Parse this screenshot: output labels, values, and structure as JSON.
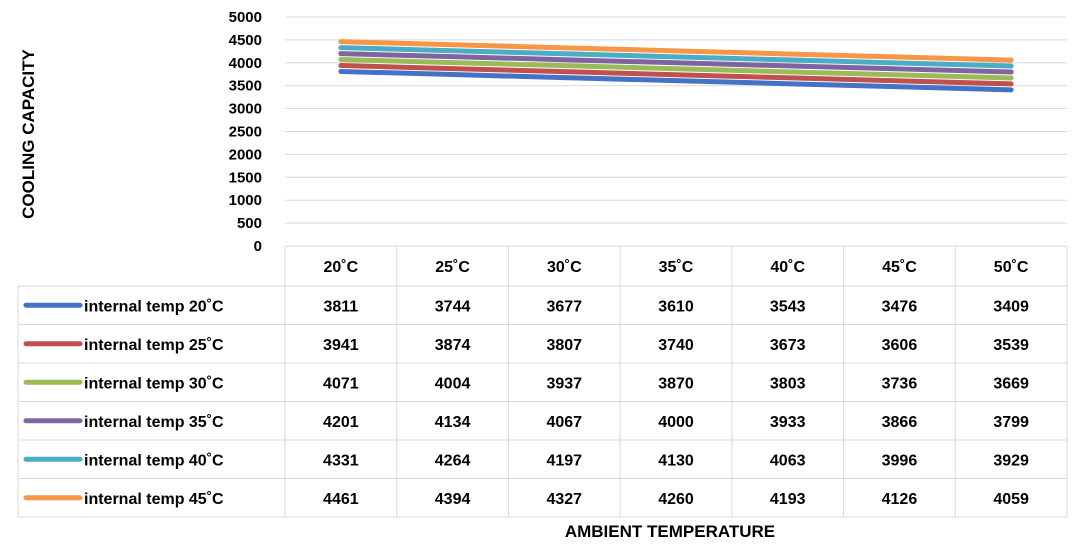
{
  "chart_data": {
    "type": "line",
    "title": "",
    "ylabel": "COOLING  CAPACITY",
    "xlabel": "AMBIENT TEMPERATURE",
    "ylim": [
      0,
      5000
    ],
    "yticks": [
      "0",
      "500",
      "1000",
      "1500",
      "2000",
      "2500",
      "3000",
      "3500",
      "4000",
      "4500",
      "5000"
    ],
    "categories": [
      "20˚C",
      "25˚C",
      "30˚C",
      "35˚C",
      "40˚C",
      "45˚C",
      "50˚C"
    ],
    "grid": true,
    "legend": "data-table",
    "series": [
      {
        "name": "internal temp 20˚C",
        "color": "#4472c4",
        "values": [
          3811,
          3744,
          3677,
          3610,
          3543,
          3476,
          3409
        ]
      },
      {
        "name": "internal temp 25˚C",
        "color": "#c0504d",
        "values": [
          3941,
          3874,
          3807,
          3740,
          3673,
          3606,
          3539
        ]
      },
      {
        "name": "internal temp 30˚C",
        "color": "#9bbb59",
        "values": [
          4071,
          4004,
          3937,
          3870,
          3803,
          3736,
          3669
        ]
      },
      {
        "name": "internal temp 35˚C",
        "color": "#8064a2",
        "values": [
          4201,
          4134,
          4067,
          4000,
          3933,
          3866,
          3799
        ]
      },
      {
        "name": "internal temp 40˚C",
        "color": "#4bacc6",
        "values": [
          4331,
          4264,
          4197,
          4130,
          4063,
          3996,
          3929
        ]
      },
      {
        "name": "internal temp 45˚C",
        "color": "#f79646",
        "values": [
          4461,
          4394,
          4327,
          4260,
          4193,
          4126,
          4059
        ]
      }
    ]
  }
}
